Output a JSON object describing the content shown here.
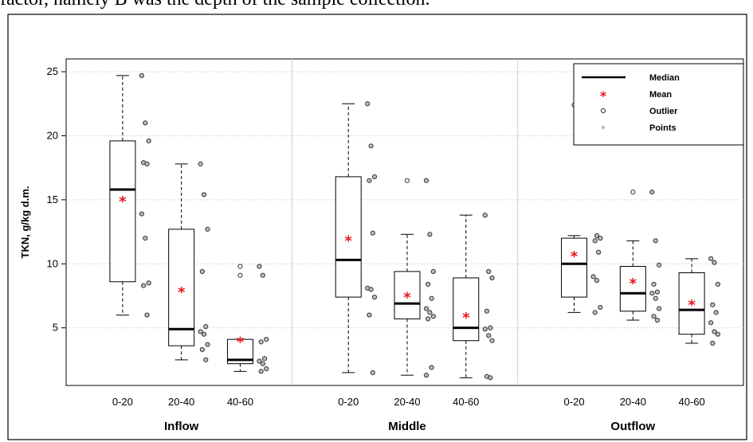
{
  "caption": "factor, namely B was the depth of the sample collection.",
  "chart_data": {
    "type": "box",
    "ylabel": "TKN, g/kg d.m.",
    "ylim": [
      0.5,
      26
    ],
    "yticks": [
      5,
      10,
      15,
      20,
      25
    ],
    "grid": "horizontal dotted",
    "legend": {
      "placement": "top-right",
      "entries": [
        "Median",
        "Mean",
        "Outlier",
        "Points"
      ]
    },
    "groups": [
      {
        "label": "Inflow",
        "boxes": [
          {
            "category": "0-20",
            "whisker_low": 6.0,
            "q1": 8.6,
            "median": 15.8,
            "q3": 19.6,
            "whisker_high": 24.7,
            "mean": 15.0,
            "points": [
              24.7,
              21.0,
              19.6,
              17.9,
              17.8,
              13.9,
              12.0,
              8.5,
              8.3,
              6.0
            ],
            "outliers": []
          },
          {
            "category": "20-40",
            "whisker_low": 2.5,
            "q1": 3.6,
            "median": 4.9,
            "q3": 12.7,
            "whisker_high": 17.8,
            "mean": 7.9,
            "points": [
              17.8,
              15.4,
              12.7,
              9.4,
              5.1,
              4.7,
              4.5,
              3.7,
              3.3,
              2.5
            ],
            "outliers": []
          },
          {
            "category": "40-60",
            "whisker_low": 1.6,
            "q1": 2.2,
            "median": 2.5,
            "q3": 4.1,
            "whisker_high": 4.1,
            "mean": 4.0,
            "points": [
              9.8,
              9.1,
              4.1,
              3.9,
              2.6,
              2.4,
              2.2,
              1.8,
              1.6
            ],
            "outliers": [
              9.8,
              9.1
            ]
          }
        ]
      },
      {
        "label": "Middle",
        "boxes": [
          {
            "category": "0-20",
            "whisker_low": 1.5,
            "q1": 7.4,
            "median": 10.3,
            "q3": 16.8,
            "whisker_high": 22.5,
            "mean": 11.9,
            "points": [
              22.5,
              19.2,
              16.8,
              16.5,
              12.4,
              8.1,
              8.0,
              7.4,
              6.0,
              1.5
            ],
            "outliers": []
          },
          {
            "category": "20-40",
            "whisker_low": 1.3,
            "q1": 5.7,
            "median": 6.9,
            "q3": 9.4,
            "whisker_high": 12.3,
            "mean": 7.5,
            "points": [
              16.5,
              12.3,
              9.4,
              8.4,
              7.3,
              6.5,
              6.2,
              5.9,
              5.7,
              1.9,
              1.3
            ],
            "outliers": [
              16.5
            ]
          },
          {
            "category": "40-60",
            "whisker_low": 1.1,
            "q1": 4.0,
            "median": 5.0,
            "q3": 8.9,
            "whisker_high": 13.8,
            "mean": 5.9,
            "points": [
              13.8,
              9.4,
              8.9,
              6.3,
              5.0,
              4.9,
              4.4,
              4.0,
              1.2,
              1.1
            ],
            "outliers": []
          }
        ]
      },
      {
        "label": "Outflow",
        "boxes": [
          {
            "category": "0-20",
            "whisker_low": 6.2,
            "q1": 7.4,
            "median": 10.0,
            "q3": 12.0,
            "whisker_high": 12.2,
            "mean": 10.7,
            "points": [
              22.4,
              12.2,
              12.0,
              11.8,
              10.9,
              9.0,
              8.7,
              6.6,
              6.2
            ],
            "outliers": [
              22.4
            ]
          },
          {
            "category": "20-40",
            "whisker_low": 5.6,
            "q1": 6.3,
            "median": 7.7,
            "q3": 9.8,
            "whisker_high": 11.8,
            "mean": 8.6,
            "points": [
              15.6,
              11.8,
              9.9,
              8.4,
              7.8,
              7.7,
              7.3,
              6.5,
              5.9,
              5.6
            ],
            "outliers": [
              15.6
            ]
          },
          {
            "category": "40-60",
            "whisker_low": 3.8,
            "q1": 4.5,
            "median": 6.4,
            "q3": 9.3,
            "whisker_high": 10.4,
            "mean": 6.9,
            "points": [
              10.4,
              10.1,
              8.4,
              6.8,
              6.2,
              5.4,
              4.7,
              4.5,
              3.8
            ],
            "outliers": []
          }
        ]
      }
    ]
  }
}
